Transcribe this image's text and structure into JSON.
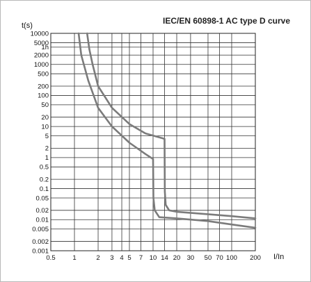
{
  "chart_data": {
    "type": "line",
    "title": "IEC/EN 60898-1 AC type D curve",
    "ylabel": "t(s)",
    "xlabel": "I/In",
    "x_scale": "log",
    "y_scale": "log",
    "xlim": [
      0.5,
      200
    ],
    "ylim": [
      0.001,
      10000
    ],
    "grid": true,
    "x_ticks": [
      {
        "value": 0.5,
        "label": "0.5"
      },
      {
        "value": 1,
        "label": "1"
      },
      {
        "value": 2,
        "label": "2"
      },
      {
        "value": 3,
        "label": "3"
      },
      {
        "value": 4,
        "label": "4"
      },
      {
        "value": 5,
        "label": "5"
      },
      {
        "value": 7,
        "label": "7"
      },
      {
        "value": 10,
        "label": "10"
      },
      {
        "value": 14,
        "label": "14"
      },
      {
        "value": 20,
        "label": "20"
      },
      {
        "value": 30,
        "label": "30"
      },
      {
        "value": 50,
        "label": "50"
      },
      {
        "value": 70,
        "label": "70"
      },
      {
        "value": 100,
        "label": "100"
      },
      {
        "value": 200,
        "label": "200"
      }
    ],
    "y_ticks": [
      {
        "value": 10000,
        "label": "10000"
      },
      {
        "value": 5000,
        "label": "5000"
      },
      {
        "value": 3600,
        "label": "1h"
      },
      {
        "value": 2000,
        "label": "2000"
      },
      {
        "value": 1000,
        "label": "1000"
      },
      {
        "value": 500,
        "label": "500"
      },
      {
        "value": 200,
        "label": "200"
      },
      {
        "value": 100,
        "label": "100"
      },
      {
        "value": 50,
        "label": "50"
      },
      {
        "value": 20,
        "label": "20"
      },
      {
        "value": 10,
        "label": "10"
      },
      {
        "value": 5,
        "label": "5"
      },
      {
        "value": 2,
        "label": "2"
      },
      {
        "value": 1,
        "label": "1"
      },
      {
        "value": 0.5,
        "label": "0.5"
      },
      {
        "value": 0.2,
        "label": "0.2"
      },
      {
        "value": 0.1,
        "label": "0.1"
      },
      {
        "value": 0.05,
        "label": "0.05"
      },
      {
        "value": 0.02,
        "label": "0.02"
      },
      {
        "value": 0.01,
        "label": "0.01"
      },
      {
        "value": 0.005,
        "label": "0.005"
      },
      {
        "value": 0.002,
        "label": "0.002"
      },
      {
        "value": 0.001,
        "label": "0.001"
      }
    ],
    "series": [
      {
        "color": "#7b7b7b",
        "points": [
          [
            1.45,
            10000
          ],
          [
            1.55,
            3000
          ],
          [
            1.7,
            1000
          ],
          [
            2.0,
            200
          ],
          [
            3.0,
            40
          ],
          [
            5.0,
            12
          ],
          [
            8.0,
            6
          ],
          [
            14,
            4
          ],
          [
            14.1,
            0.08
          ],
          [
            14.5,
            0.03
          ],
          [
            16,
            0.02
          ],
          [
            20,
            0.018
          ],
          [
            50,
            0.015
          ],
          [
            100,
            0.013
          ],
          [
            200,
            0.011
          ]
        ]
      },
      {
        "color": "#7b7b7b",
        "points": [
          [
            1.13,
            10000
          ],
          [
            1.22,
            2000
          ],
          [
            1.5,
            300
          ],
          [
            2.0,
            40
          ],
          [
            3.0,
            10
          ],
          [
            5.0,
            3
          ],
          [
            8.0,
            1.3
          ],
          [
            10,
            0.9
          ],
          [
            10.1,
            0.05
          ],
          [
            10.5,
            0.02
          ],
          [
            12,
            0.012
          ],
          [
            20,
            0.011
          ],
          [
            50,
            0.009
          ],
          [
            100,
            0.007
          ],
          [
            200,
            0.0055
          ]
        ]
      }
    ]
  }
}
